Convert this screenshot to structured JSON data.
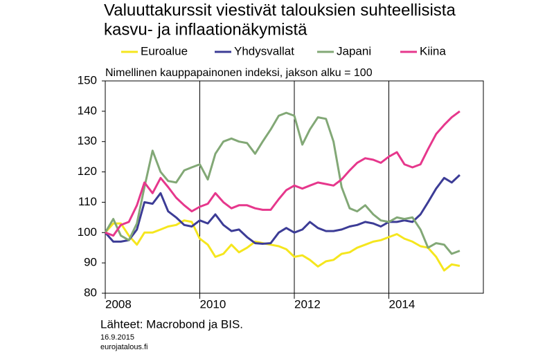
{
  "chart_data": {
    "type": "line",
    "title": [
      "Valuuttakurssit viestivät talouksien suhteellisista",
      "kasvu- ja inflaationäkymistä"
    ],
    "subtitle": "Nimellinen kauppapainonen indeksi, jakson alku = 100",
    "source": "Lähteet: Macrobond ja BIS.",
    "date": "16.9.2015",
    "site": "eurojatalous.fi",
    "xlim": [
      2008,
      2016
    ],
    "xticks": [
      2008,
      2010,
      2012,
      2014
    ],
    "ylim": [
      80,
      150
    ],
    "yticks": [
      80,
      90,
      100,
      110,
      120,
      130,
      140,
      150
    ],
    "x": [
      2008,
      2008.17,
      2008.33,
      2008.5,
      2008.67,
      2008.83,
      2009,
      2009.17,
      2009.33,
      2009.5,
      2009.67,
      2009.83,
      2010,
      2010.17,
      2010.33,
      2010.5,
      2010.67,
      2010.83,
      2011,
      2011.17,
      2011.33,
      2011.5,
      2011.67,
      2011.83,
      2012,
      2012.17,
      2012.33,
      2012.5,
      2012.67,
      2012.83,
      2013,
      2013.17,
      2013.33,
      2013.5,
      2013.67,
      2013.83,
      2014,
      2014.17,
      2014.33,
      2014.5,
      2014.67,
      2014.83,
      2015,
      2015.17,
      2015.33,
      2015.5
    ],
    "series": [
      {
        "name": "Euroalue",
        "color": "#f5e61e",
        "values": [
          100,
          103,
          103,
          99,
          96,
          100,
          100,
          101,
          102,
          102.5,
          104,
          103.5,
          98,
          96,
          92,
          93,
          96,
          93.5,
          95,
          97,
          96.5,
          96,
          95.5,
          94.5,
          92,
          92.5,
          91,
          88.8,
          90.5,
          91,
          93,
          93.5,
          95,
          96,
          97,
          97.5,
          98.5,
          99.5,
          98,
          97,
          95.5,
          95,
          92,
          87.5,
          89.5,
          89
        ]
      },
      {
        "name": "Yhdysvallat",
        "color": "#3c3c96",
        "values": [
          100,
          97,
          97,
          97.5,
          101,
          110,
          109.5,
          113,
          107,
          105,
          102.5,
          102,
          104,
          103,
          106,
          102.5,
          100.5,
          101,
          98.5,
          96.5,
          96.3,
          96.5,
          100,
          101.5,
          100,
          101,
          103.5,
          101.5,
          100.5,
          100.5,
          101,
          102,
          102.5,
          103.5,
          103,
          102,
          103.5,
          103.5,
          104,
          103.5,
          106,
          110,
          114.5,
          118,
          116.5,
          119
        ]
      },
      {
        "name": "Japani",
        "color": "#82a876",
        "values": [
          100,
          104.5,
          99,
          97.5,
          103,
          115,
          127,
          120,
          117,
          116.5,
          120.5,
          121.5,
          122.5,
          117.5,
          126,
          130,
          131,
          130,
          129.5,
          126,
          130,
          134,
          138.5,
          139.5,
          138.5,
          129,
          134,
          138,
          137.5,
          130,
          115,
          108,
          107,
          109,
          106,
          104,
          103.5,
          105,
          104.5,
          105,
          101,
          95,
          96.5,
          96,
          93,
          94
        ]
      },
      {
        "name": "Kiina",
        "color": "#e6378c",
        "values": [
          100,
          99,
          102.5,
          103.5,
          109,
          116.5,
          113,
          118,
          115,
          111.5,
          109,
          107,
          108.5,
          109.5,
          113,
          110,
          108,
          109,
          109,
          108,
          107.5,
          107.5,
          111,
          114,
          115.5,
          114.5,
          115.5,
          116.5,
          116,
          115.5,
          117.5,
          120.5,
          123,
          124.5,
          124,
          123,
          125,
          126.5,
          122.5,
          121.5,
          122.5,
          127.5,
          132.5,
          135.5,
          138,
          140
        ]
      }
    ]
  }
}
